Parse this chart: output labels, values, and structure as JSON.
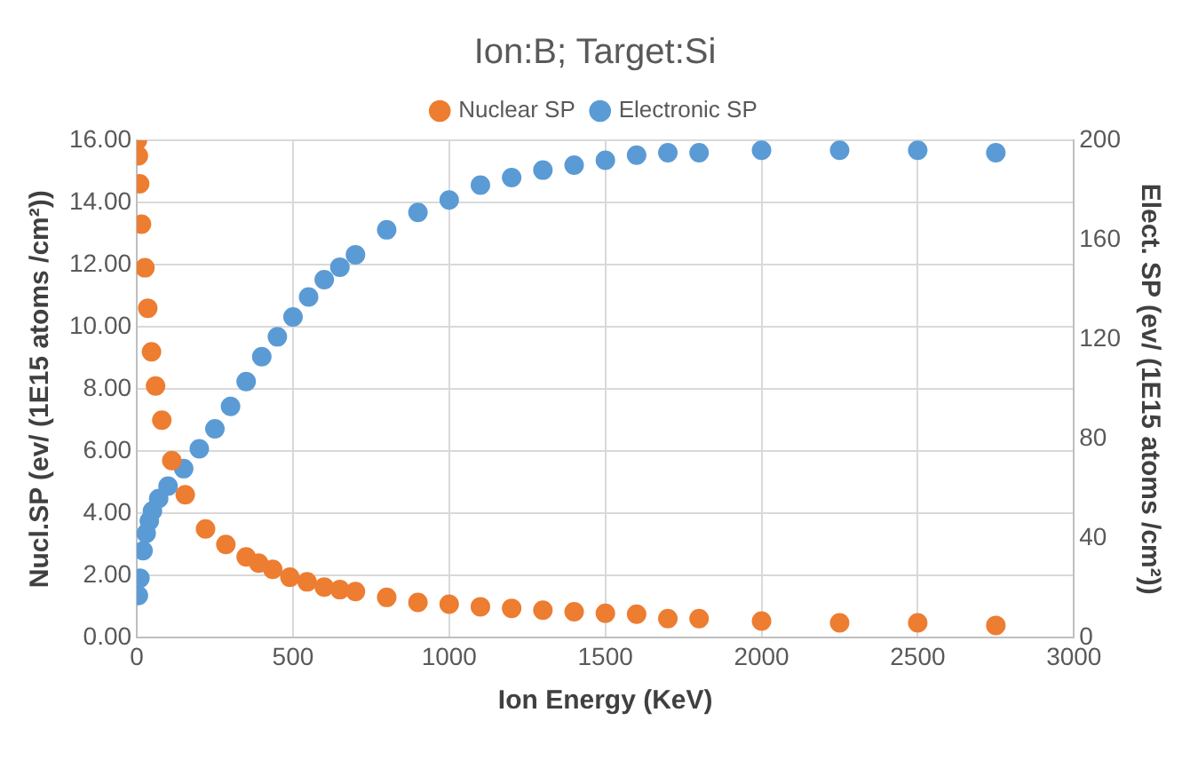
{
  "chart_data": {
    "type": "scatter",
    "title": "Ion:B; Target:Si",
    "xlabel": "Ion Energy (KeV)",
    "ylabel": "Nucl.SP (ev/ (1E15 atoms /cm²))",
    "y2label": "Elect. SP (ev/ (1E15 atoms /cm²))",
    "series": [
      {
        "name": "Nuclear SP",
        "color": "#ed7d31",
        "x": [
          2,
          5,
          9,
          15,
          26,
          35,
          47,
          60,
          80,
          112,
          155,
          220,
          285,
          350,
          390,
          435,
          490,
          545,
          600,
          650,
          700,
          800,
          900,
          1000,
          1100,
          1200,
          1300,
          1400,
          1500,
          1600,
          1700,
          1800,
          2000,
          2250,
          2500,
          2750
        ],
        "values": [
          16.0,
          15.5,
          14.6,
          13.3,
          11.9,
          10.6,
          9.2,
          8.1,
          7.0,
          5.7,
          4.6,
          3.5,
          3.0,
          2.6,
          2.4,
          2.2,
          1.95,
          1.8,
          1.63,
          1.55,
          1.49,
          1.3,
          1.14,
          1.08,
          1.0,
          0.95,
          0.89,
          0.84,
          0.79,
          0.76,
          0.62,
          0.62,
          0.54,
          0.48,
          0.48,
          0.4
        ]
      },
      {
        "name": "Electronic SP",
        "color": "#5b9bd5",
        "axis": "y2",
        "x": [
          5,
          10,
          20,
          30,
          40,
          50,
          70,
          100,
          150,
          200,
          250,
          300,
          350,
          400,
          450,
          500,
          550,
          600,
          650,
          700,
          800,
          900,
          1000,
          1100,
          1200,
          1300,
          1400,
          1500,
          1600,
          1700,
          1800,
          2000,
          2250,
          2500,
          2750
        ],
        "values": [
          17,
          24,
          35,
          42,
          47,
          51,
          56,
          61,
          68,
          76,
          84,
          93,
          103,
          113,
          121,
          129,
          137,
          144,
          149,
          154,
          164,
          171,
          176,
          182,
          185,
          188,
          190,
          192,
          194,
          195,
          195,
          196,
          196,
          196,
          195
        ]
      }
    ],
    "xlim": [
      0,
      3000
    ],
    "xticks": [
      0,
      500,
      1000,
      1500,
      2000,
      2500,
      3000
    ],
    "ylim": [
      0,
      16
    ],
    "yticks": [
      {
        "value": 0,
        "label": "0.00"
      },
      {
        "value": 2,
        "label": "2.00"
      },
      {
        "value": 4,
        "label": "4.00"
      },
      {
        "value": 6,
        "label": "6.00"
      },
      {
        "value": 8,
        "label": "8.00"
      },
      {
        "value": 10,
        "label": "10.00"
      },
      {
        "value": 12,
        "label": "12.00"
      },
      {
        "value": 14,
        "label": "14.00"
      },
      {
        "value": 16,
        "label": "16.00"
      }
    ],
    "y2lim": [
      0,
      200
    ],
    "y2ticks": [
      0,
      40,
      80,
      120,
      160,
      200
    ],
    "grid": true,
    "legend": "top",
    "marker": "circle"
  }
}
